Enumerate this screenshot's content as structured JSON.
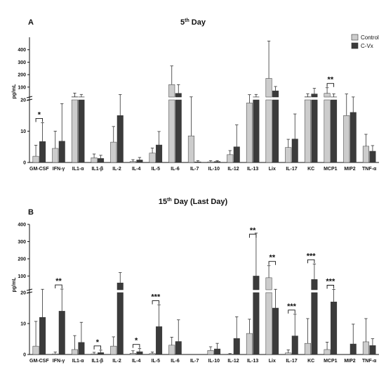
{
  "legend": {
    "position": "top-right",
    "items": [
      {
        "name": "Control",
        "color": "#cccccc"
      },
      {
        "name": "C-Vx",
        "color": "#3b3b3b"
      }
    ]
  },
  "chart_data": [
    {
      "type": "bar",
      "panel": "A",
      "title": "5th Day",
      "title_base": "5",
      "title_sup": "th",
      "title_rest": " Day",
      "ylabel": "pg/mL",
      "broken_axis": true,
      "lower_ylim": [
        0,
        20
      ],
      "upper_ylim": [
        20,
        500
      ],
      "lower_ticks": [
        "0",
        "10",
        "20"
      ],
      "upper_ticks": [
        "100",
        "200",
        "300",
        "400"
      ],
      "upper_tick_values": [
        100,
        200,
        300,
        400
      ],
      "categories": [
        "GM-CSF",
        "IFN-γ",
        "IL1-α",
        "IL1-β",
        "IL-2",
        "IL-4",
        "IL-5",
        "IL-6",
        "IL-7",
        "IL-10",
        "IL-12",
        "IL-13",
        "Lix",
        "IL-17",
        "KC",
        "MCP1",
        "MIP2",
        "TNF-α"
      ],
      "series": [
        {
          "name": "Control",
          "color": "#cccccc",
          "values": [
            2,
            4.5,
            22,
            1.5,
            6.5,
            0.3,
            3,
            120,
            8.5,
            0.2,
            2.5,
            19,
            170,
            4.8,
            22,
            50,
            15,
            5.2
          ],
          "errors": [
            3.5,
            5.5,
            30,
            1.2,
            5,
            0.6,
            1.6,
            150,
            13,
            0.4,
            1.3,
            20,
            300,
            2.6,
            25,
            45,
            30,
            3.8
          ]
        },
        {
          "name": "C-Vx",
          "color": "#3b3b3b",
          "values": [
            6.7,
            6.8,
            21,
            1.3,
            15,
            0.8,
            5.6,
            50,
            0.2,
            0.3,
            5,
            21,
            70,
            7.5,
            45,
            21,
            16,
            3.6
          ],
          "errors": [
            6,
            12,
            20,
            1,
            25,
            0.8,
            4.3,
            70,
            0.4,
            0.3,
            7,
            20,
            35,
            8,
            45,
            25,
            4.8,
            1.8
          ]
        }
      ],
      "significance": [
        {
          "category": "GM-CSF",
          "label": "*"
        },
        {
          "category": "MCP1",
          "label": "**"
        }
      ]
    },
    {
      "type": "bar",
      "panel": "B",
      "title": "15th Day (Last Day)",
      "title_base": "15",
      "title_sup": "th",
      "title_rest": " Day (Last Day)",
      "ylabel": "pg/mL",
      "broken_axis": true,
      "lower_ylim": [
        0,
        20
      ],
      "upper_ylim": [
        20,
        400
      ],
      "lower_ticks": [
        "0",
        "10",
        "20"
      ],
      "upper_ticks": [
        "100",
        "200",
        "300",
        "400"
      ],
      "upper_tick_values": [
        100,
        200,
        300,
        400
      ],
      "categories": [
        "GM-CSF",
        "IFN-γ",
        "IL1-α",
        "IL1-β",
        "IL-2",
        "IL-4",
        "IL-5",
        "IL-6",
        "IL-7",
        "IL-10",
        "IL-12",
        "IL-13",
        "Lix",
        "IL-17",
        "KC",
        "MCP1",
        "MIP2",
        "TNF-α"
      ],
      "series": [
        {
          "name": "Control",
          "color": "#cccccc",
          "values": [
            2.7,
            0.2,
            1.6,
            0.2,
            2.7,
            0.4,
            0.3,
            3,
            0,
            1.3,
            0.1,
            6.8,
            90,
            0.5,
            3.6,
            1.6,
            0,
            4.1
          ],
          "errors": [
            8,
            0.6,
            4.5,
            0.5,
            3,
            0.8,
            0.5,
            2.6,
            0,
            1.2,
            0.2,
            4.6,
            70,
            1,
            8,
            2.4,
            0,
            7.5
          ]
        },
        {
          "name": "C-Vx",
          "color": "#3b3b3b",
          "values": [
            12,
            14,
            3.9,
            0.6,
            60,
            0.9,
            9,
            4.2,
            0,
            1.8,
            5.2,
            100,
            15,
            6,
            80,
            17,
            3.4,
            2.9
          ],
          "errors": [
            11,
            10,
            6.5,
            0.8,
            60,
            1,
            7,
            7,
            0,
            1.8,
            7,
            250,
            8,
            7,
            90,
            5,
            6.4,
            2.2
          ]
        }
      ],
      "significance": [
        {
          "category": "IFN-γ",
          "label": "**"
        },
        {
          "category": "IL1-β",
          "label": "*"
        },
        {
          "category": "IL-4",
          "label": "*"
        },
        {
          "category": "IL-5",
          "label": "***"
        },
        {
          "category": "IL-13",
          "label": "**"
        },
        {
          "category": "Lix",
          "label": "**"
        },
        {
          "category": "IL-17",
          "label": "***"
        },
        {
          "category": "KC",
          "label": "***"
        },
        {
          "category": "MCP1",
          "label": "***"
        }
      ]
    }
  ]
}
